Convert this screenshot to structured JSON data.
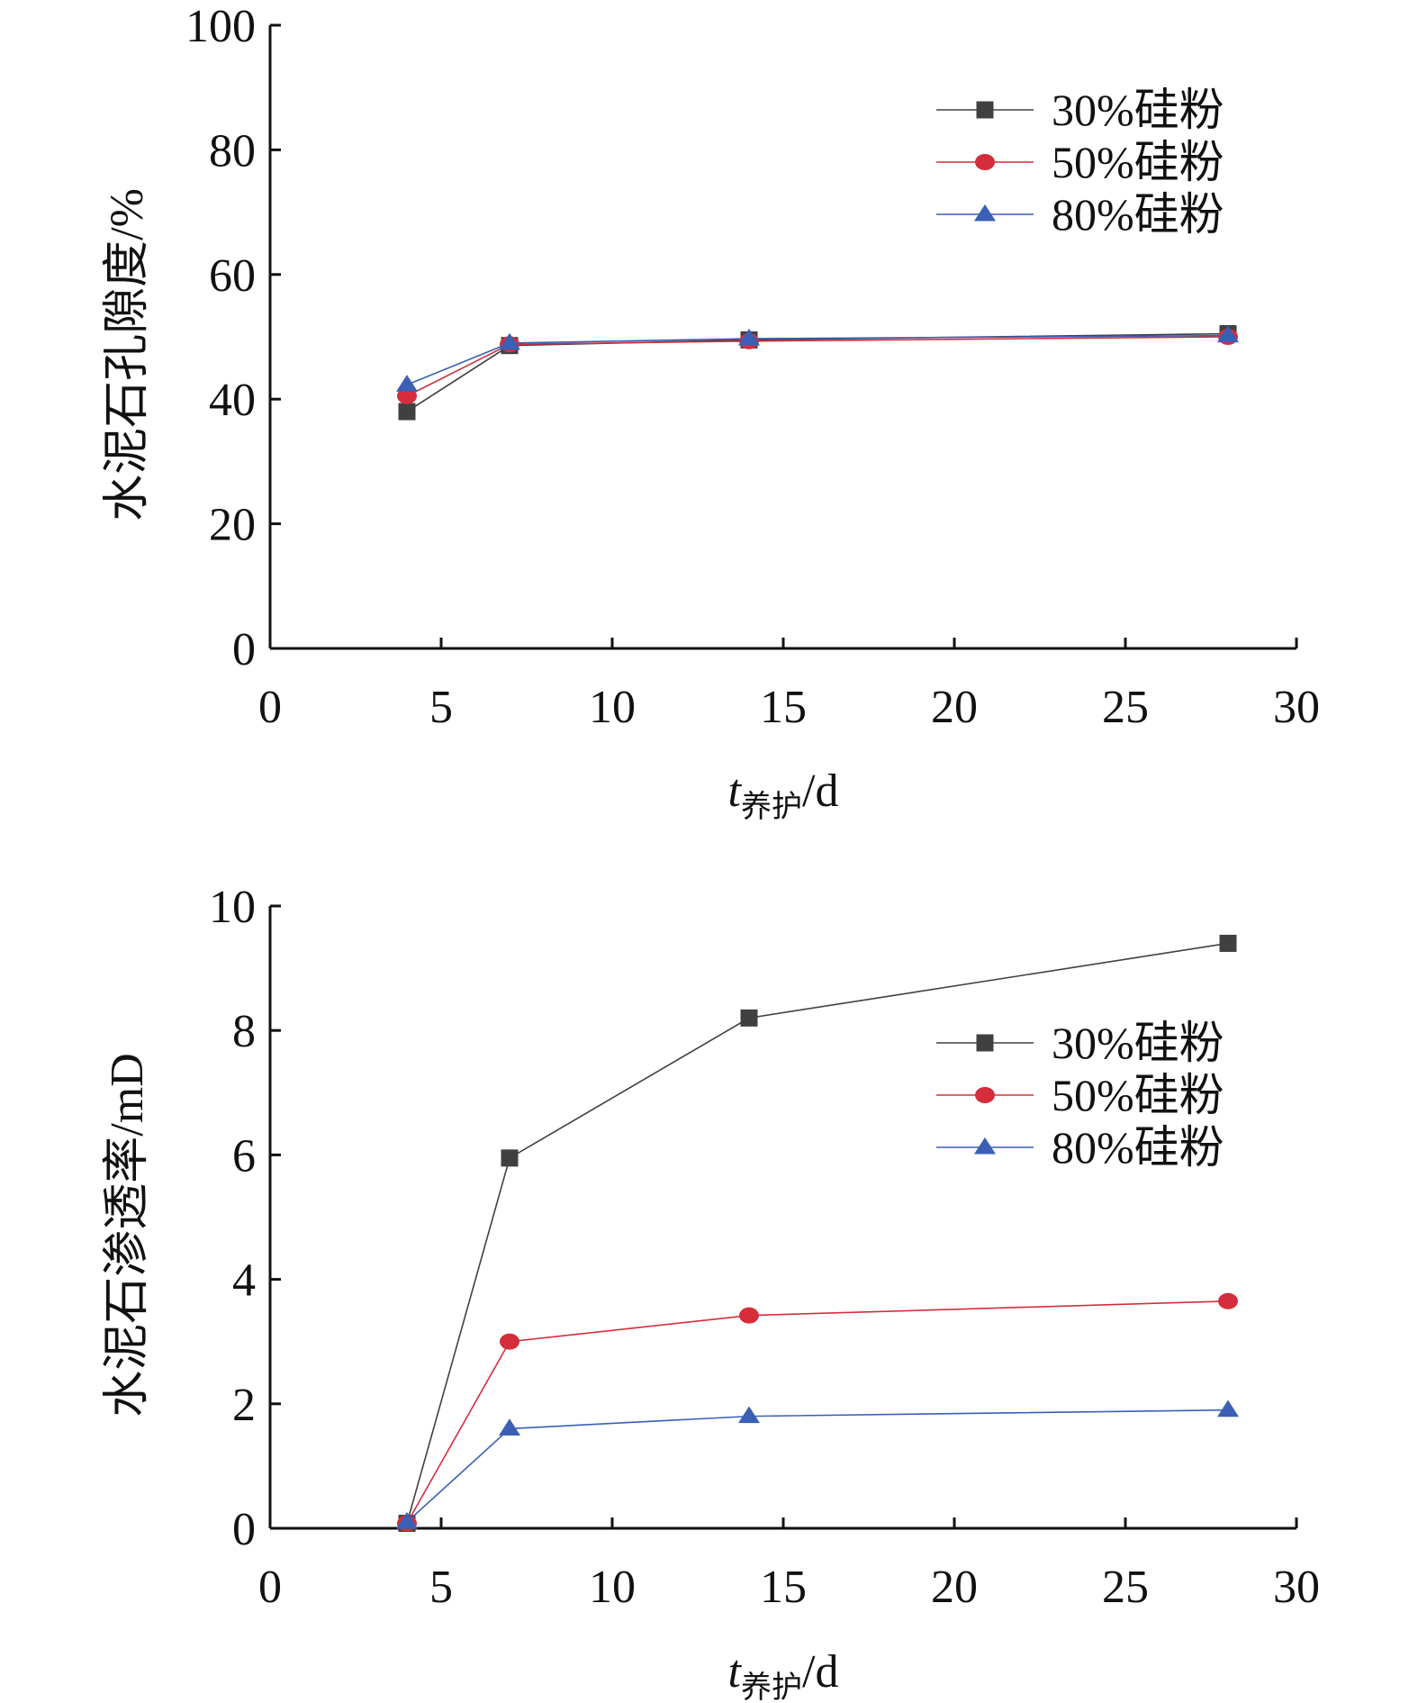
{
  "chart_data": [
    {
      "type": "line",
      "x": [
        4,
        7,
        14,
        28
      ],
      "xlim": [
        0,
        30
      ],
      "ylim": [
        0,
        100
      ],
      "xticks": [
        "0",
        "5",
        "10",
        "15",
        "20",
        "25",
        "30"
      ],
      "yticks": [
        "0",
        "20",
        "40",
        "60",
        "80",
        "100"
      ],
      "xlabel_main": "t",
      "xlabel_sub": "养护",
      "xlabel_unit": "/d",
      "ylabel": "水泥石孔隙度/%",
      "legend_position": "top-right",
      "grid": false,
      "series": [
        {
          "name": "30%硅粉",
          "marker": "square",
          "color": "#404040",
          "values": [
            38.0,
            48.6,
            49.5,
            50.5
          ]
        },
        {
          "name": "50%硅粉",
          "marker": "circle",
          "color": "#d62d3c",
          "values": [
            40.5,
            48.8,
            49.3,
            50.0
          ]
        },
        {
          "name": "80%硅粉",
          "marker": "triangle",
          "color": "#3a5fb5",
          "values": [
            42.3,
            49.0,
            49.7,
            50.2
          ]
        }
      ]
    },
    {
      "type": "line",
      "x": [
        4,
        7,
        14,
        28
      ],
      "xlim": [
        0,
        30
      ],
      "ylim": [
        0,
        10
      ],
      "xticks": [
        "0",
        "5",
        "10",
        "15",
        "20",
        "25",
        "30"
      ],
      "yticks": [
        "0",
        "2",
        "4",
        "6",
        "8",
        "10"
      ],
      "xlabel_main": "t",
      "xlabel_sub": "养护",
      "xlabel_unit": "/d",
      "ylabel": "水泥石渗透率/mD",
      "legend_position": "right",
      "grid": false,
      "series": [
        {
          "name": "30%硅粉",
          "marker": "square",
          "color": "#404040",
          "values": [
            0.08,
            5.95,
            8.2,
            9.4
          ]
        },
        {
          "name": "50%硅粉",
          "marker": "circle",
          "color": "#d62d3c",
          "values": [
            0.08,
            3.0,
            3.42,
            3.65
          ]
        },
        {
          "name": "80%硅粉",
          "marker": "triangle",
          "color": "#3a5fb5",
          "values": [
            0.1,
            1.6,
            1.8,
            1.9
          ]
        }
      ]
    }
  ]
}
